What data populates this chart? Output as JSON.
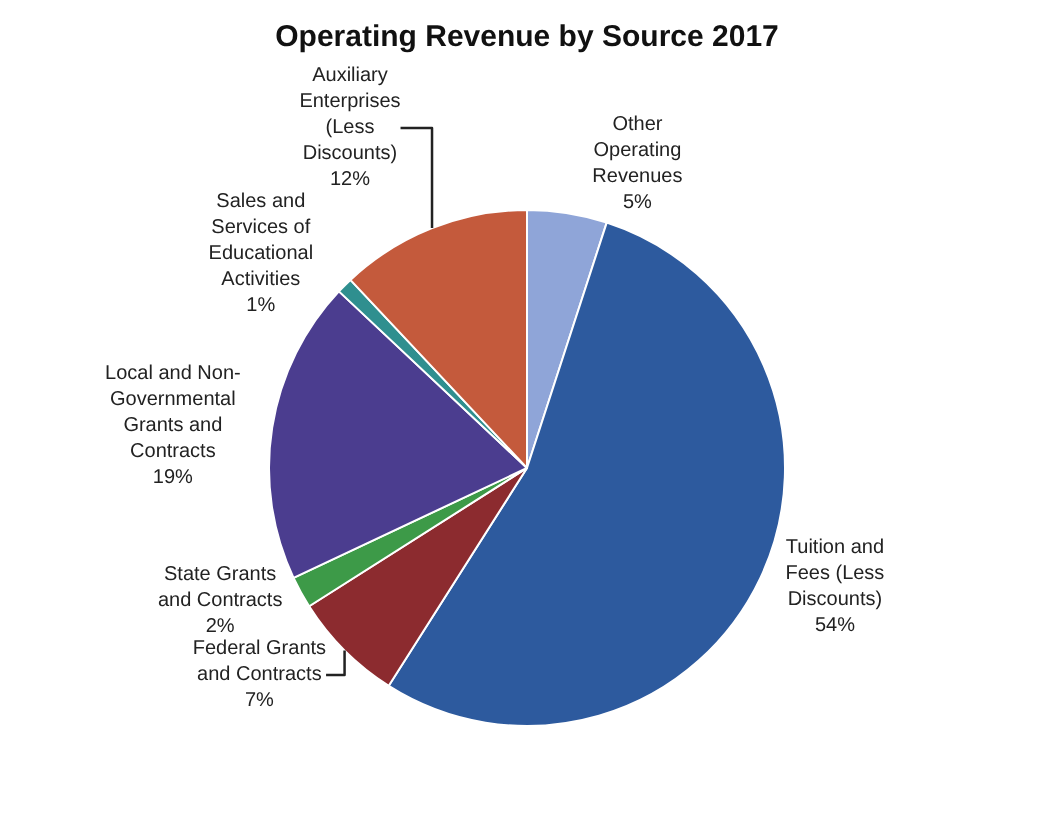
{
  "chart_data": {
    "type": "pie",
    "title": "Operating Revenue by Source 2017",
    "categories": [
      "Other Operating Revenues",
      "Tuition and Fees (Less Discounts)",
      "Federal Grants and Contracts",
      "State Grants and Contracts",
      "Local and Non-Governmental Grants and Contracts",
      "Sales and Services of Educational Activities",
      "Auxiliary Enterprises (Less Discounts)"
    ],
    "values": [
      5,
      54,
      7,
      2,
      19,
      1,
      12
    ],
    "value_labels": [
      "5%",
      "54%",
      "7%",
      "2%",
      "19%",
      "1%",
      "12%"
    ],
    "colors": [
      "#8fa5d8",
      "#2d5a9e",
      "#8c2b2f",
      "#3d9a48",
      "#4b3d8f",
      "#2f8f8f",
      "#c45a3c"
    ],
    "legend": false
  }
}
